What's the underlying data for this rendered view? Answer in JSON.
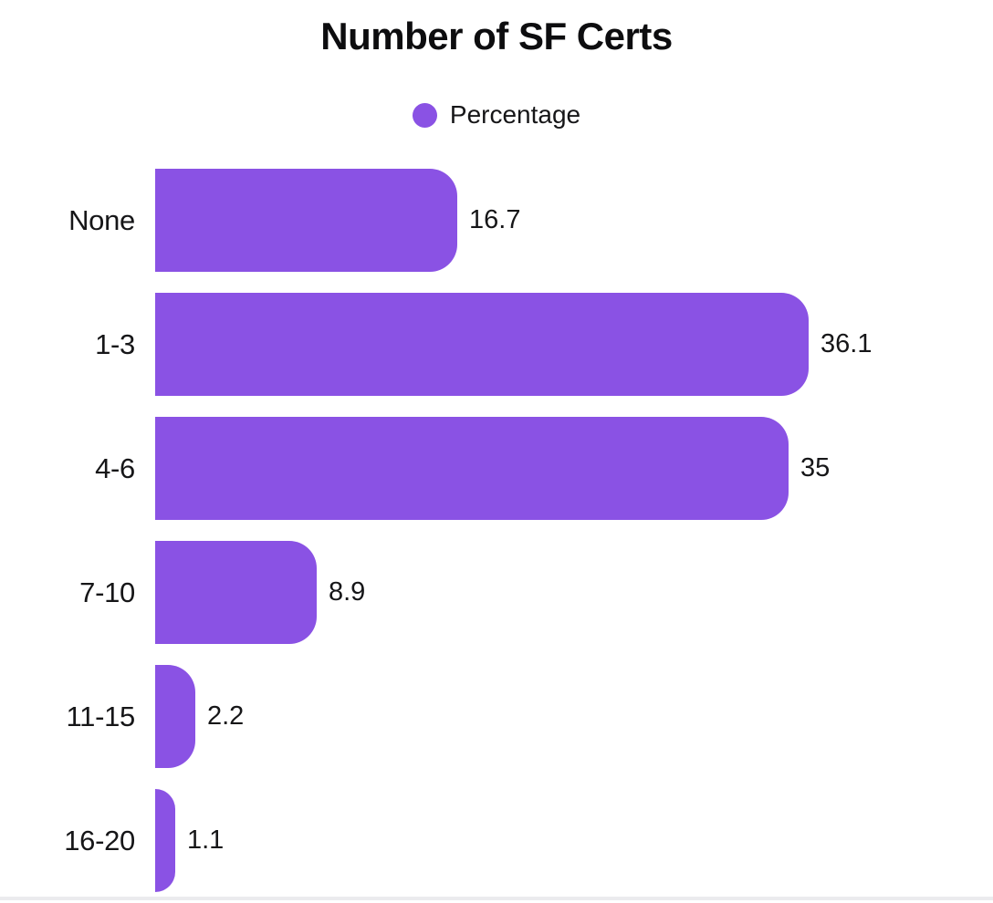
{
  "title": "Number of SF Certs",
  "legend": {
    "label": "Percentage"
  },
  "colors": {
    "bar": "#8a52e4",
    "text": "#161618",
    "title": "#0d0d0f",
    "background": "#ffffff",
    "bottom_divider": "#ebebee"
  },
  "chart_data": {
    "type": "bar",
    "orientation": "horizontal",
    "title": "Number of SF Certs",
    "categories": [
      "None",
      "1-3",
      "4-6",
      "7-10",
      "11-15",
      "16-20"
    ],
    "series": [
      {
        "name": "Percentage",
        "values": [
          16.7,
          36.1,
          35,
          8.9,
          2.2,
          1.1
        ]
      }
    ],
    "value_labels": [
      "16.7",
      "36.1",
      "35",
      "8.9",
      "2.2",
      "1.1"
    ],
    "xlabel": "",
    "ylabel": "",
    "xlim": [
      0,
      36.1
    ],
    "grid": false,
    "legend_position": "top-center",
    "bar_color": "#8a52e4"
  }
}
